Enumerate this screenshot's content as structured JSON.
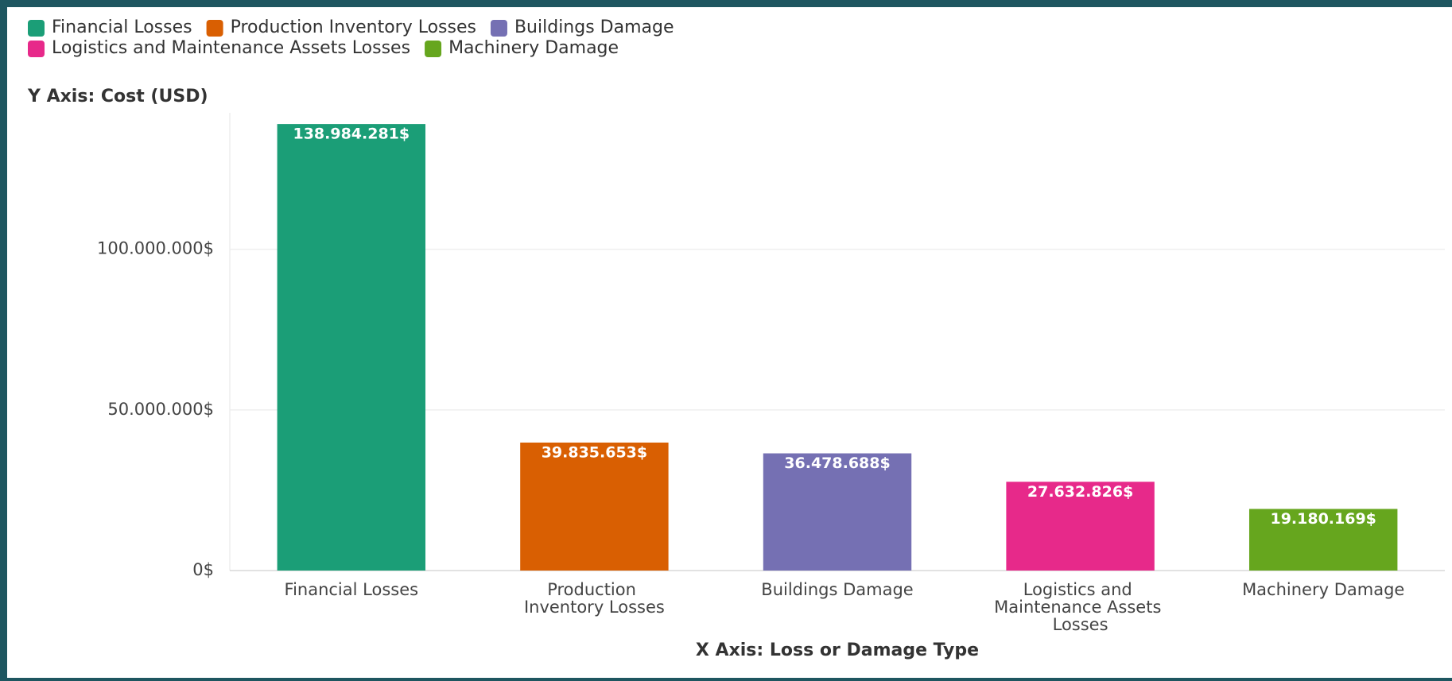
{
  "chart_data": {
    "type": "bar",
    "y_label": "Y Axis: Cost (USD)",
    "x_label": "X Axis: Loss or Damage Type",
    "categories": [
      "Financial Losses",
      "Production Inventory Losses",
      "Buildings Damage",
      "Logistics and Maintenance Assets Losses",
      "Machinery Damage"
    ],
    "values": [
      138984281,
      39835653,
      36478688,
      27632826,
      19180169
    ],
    "value_labels": [
      "138.984.281$",
      "39.835.653$",
      "36.478.688$",
      "27.632.826$",
      "19.180.169$"
    ],
    "colors": [
      "#1b9e77",
      "#d95f02",
      "#7570b3",
      "#e7298a",
      "#66a61e"
    ],
    "ylim": [
      0,
      140000000
    ],
    "yticks": [
      {
        "value": 0,
        "label": "0$"
      },
      {
        "value": 50000000,
        "label": "50.000.000$"
      },
      {
        "value": 100000000,
        "label": "100.000.000$"
      }
    ],
    "grid": true,
    "legend": "top-left"
  }
}
